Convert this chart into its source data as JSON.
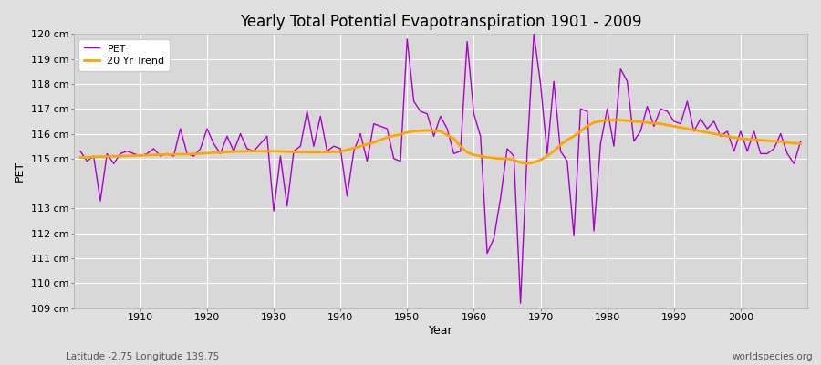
{
  "title": "Yearly Total Potential Evapotranspiration 1901 - 2009",
  "xlabel": "Year",
  "ylabel": "PET",
  "footnote_left": "Latitude -2.75 Longitude 139.75",
  "footnote_right": "worldspecies.org",
  "ylim": [
    109,
    120
  ],
  "pet_color": "#AA00CC",
  "trend_color": "#FFA500",
  "bg_color": "#E0E0E0",
  "plot_bg_color": "#D8D8D8",
  "years": [
    1901,
    1902,
    1903,
    1904,
    1905,
    1906,
    1907,
    1908,
    1909,
    1910,
    1911,
    1912,
    1913,
    1914,
    1915,
    1916,
    1917,
    1918,
    1919,
    1920,
    1921,
    1922,
    1923,
    1924,
    1925,
    1926,
    1927,
    1928,
    1929,
    1930,
    1931,
    1932,
    1933,
    1934,
    1935,
    1936,
    1937,
    1938,
    1939,
    1940,
    1941,
    1942,
    1943,
    1944,
    1945,
    1946,
    1947,
    1948,
    1949,
    1950,
    1951,
    1952,
    1953,
    1954,
    1955,
    1956,
    1957,
    1958,
    1959,
    1960,
    1961,
    1962,
    1963,
    1964,
    1965,
    1966,
    1967,
    1968,
    1969,
    1970,
    1971,
    1972,
    1973,
    1974,
    1975,
    1976,
    1977,
    1978,
    1979,
    1980,
    1981,
    1982,
    1983,
    1984,
    1985,
    1986,
    1987,
    1988,
    1989,
    1990,
    1991,
    1992,
    1993,
    1994,
    1995,
    1996,
    1997,
    1998,
    1999,
    2000,
    2001,
    2002,
    2003,
    2004,
    2005,
    2006,
    2007,
    2008,
    2009
  ],
  "pet_values": [
    115.3,
    114.9,
    115.1,
    113.3,
    115.2,
    114.8,
    115.2,
    115.3,
    115.2,
    115.1,
    115.2,
    115.4,
    115.1,
    115.2,
    115.1,
    116.2,
    115.2,
    115.1,
    115.4,
    116.2,
    115.6,
    115.2,
    115.9,
    115.3,
    116.0,
    115.4,
    115.3,
    115.6,
    115.9,
    112.9,
    115.1,
    113.1,
    115.3,
    115.5,
    116.9,
    115.5,
    116.7,
    115.3,
    115.5,
    115.4,
    113.5,
    115.3,
    116.0,
    114.9,
    116.4,
    116.3,
    116.2,
    115.0,
    114.9,
    119.8,
    117.3,
    116.9,
    116.8,
    115.9,
    116.7,
    116.2,
    115.2,
    115.3,
    119.7,
    116.8,
    115.9,
    111.2,
    111.8,
    113.4,
    115.4,
    115.1,
    109.2,
    115.3,
    120.0,
    118.0,
    115.2,
    118.1,
    115.3,
    114.9,
    111.9,
    117.0,
    116.9,
    112.1,
    115.6,
    117.0,
    115.5,
    118.6,
    118.1,
    115.7,
    116.1,
    117.1,
    116.3,
    117.0,
    116.9,
    116.5,
    116.4,
    117.3,
    116.1,
    116.6,
    116.2,
    116.5,
    115.9,
    116.1,
    115.3,
    116.1,
    115.3,
    116.1,
    115.2,
    115.2,
    115.4,
    116.0,
    115.2,
    114.8,
    115.7
  ],
  "trend_values": [
    115.05,
    115.05,
    115.07,
    115.08,
    115.09,
    115.1,
    115.1,
    115.11,
    115.12,
    115.13,
    115.14,
    115.15,
    115.16,
    115.17,
    115.17,
    115.18,
    115.18,
    115.19,
    115.2,
    115.22,
    115.24,
    115.25,
    115.27,
    115.28,
    115.29,
    115.3,
    115.3,
    115.3,
    115.3,
    115.3,
    115.29,
    115.28,
    115.27,
    115.26,
    115.26,
    115.26,
    115.26,
    115.27,
    115.27,
    115.28,
    115.35,
    115.42,
    115.5,
    115.58,
    115.65,
    115.75,
    115.85,
    115.92,
    115.97,
    116.05,
    116.1,
    116.12,
    116.13,
    116.12,
    116.1,
    115.95,
    115.8,
    115.5,
    115.25,
    115.15,
    115.1,
    115.05,
    115.02,
    115.0,
    115.0,
    114.95,
    114.85,
    114.8,
    114.85,
    114.95,
    115.1,
    115.3,
    115.55,
    115.75,
    115.9,
    116.1,
    116.3,
    116.45,
    116.5,
    116.55,
    116.55,
    116.55,
    116.52,
    116.5,
    116.48,
    116.45,
    116.42,
    116.4,
    116.35,
    116.3,
    116.25,
    116.2,
    116.15,
    116.1,
    116.05,
    116.0,
    115.95,
    115.9,
    115.85,
    115.8,
    115.78,
    115.76,
    115.74,
    115.72,
    115.7,
    115.68,
    115.65,
    115.62,
    115.6
  ]
}
